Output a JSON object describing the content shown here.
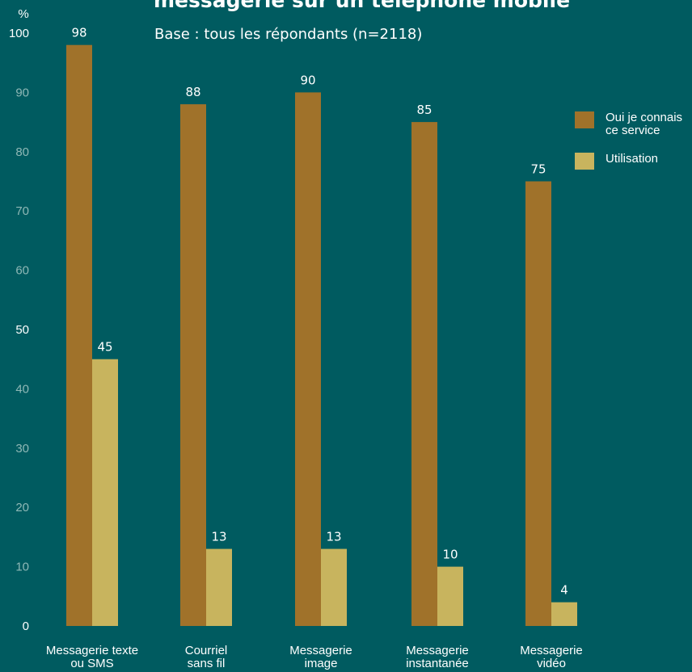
{
  "header": {
    "title": "messagerie sur un téléphone mobile",
    "subtitle": "Base : tous les répondants (n=2118)"
  },
  "legend": {
    "items": [
      {
        "label": "Oui je connais ce service",
        "color": "#a0722a"
      },
      {
        "label": "Utilisation",
        "color": "#c8b45e"
      }
    ]
  },
  "chart_data": {
    "type": "bar",
    "unit_label": "%",
    "categories": [
      [
        "Messagerie texte",
        "ou SMS"
      ],
      [
        "Courriel",
        "sans fil"
      ],
      [
        "Messagerie",
        "image"
      ],
      [
        "Messagerie",
        "instantanée"
      ],
      [
        "Messagerie",
        "vidéo"
      ]
    ],
    "series": [
      {
        "name": "Oui je connais ce service",
        "values": [
          98,
          88,
          90,
          85,
          75
        ],
        "color": "#a0722a"
      },
      {
        "name": "Utilisation",
        "values": [
          45,
          13,
          13,
          10,
          4
        ],
        "color": "#c8b45e"
      }
    ],
    "ylim": [
      0,
      100
    ],
    "yticks": [
      0,
      10,
      20,
      30,
      40,
      50,
      60,
      70,
      80,
      90,
      100
    ],
    "ytick_colors": {
      "highlighted": [
        0,
        50,
        100
      ],
      "highlight_color": "#ffffff",
      "muted_color": "#8fb8b6"
    },
    "grid": false,
    "legend_position": "right"
  }
}
